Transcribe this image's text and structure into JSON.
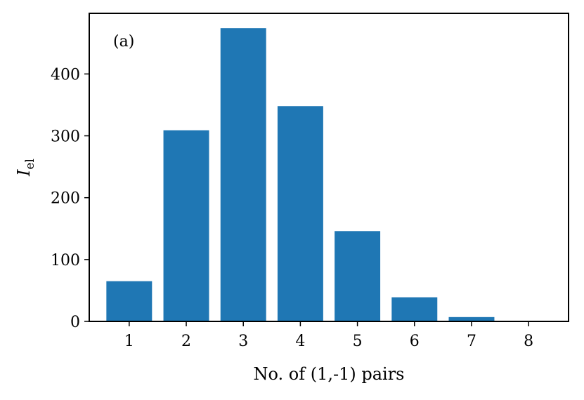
{
  "chart_data": {
    "type": "bar",
    "categories": [
      "1",
      "2",
      "3",
      "4",
      "5",
      "6",
      "7",
      "8"
    ],
    "values": [
      65,
      309,
      474,
      348,
      146,
      39,
      7,
      0
    ],
    "xlabel": "No. of (1,-1) pairs",
    "ylabel": "I",
    "ylabel_subscript": "el",
    "panel_label": "(a)",
    "ylim": [
      0,
      498
    ],
    "yticks": [
      0,
      100,
      200,
      300,
      400
    ],
    "bar_color": "#1f77b4",
    "grid": false,
    "legend": "none"
  }
}
